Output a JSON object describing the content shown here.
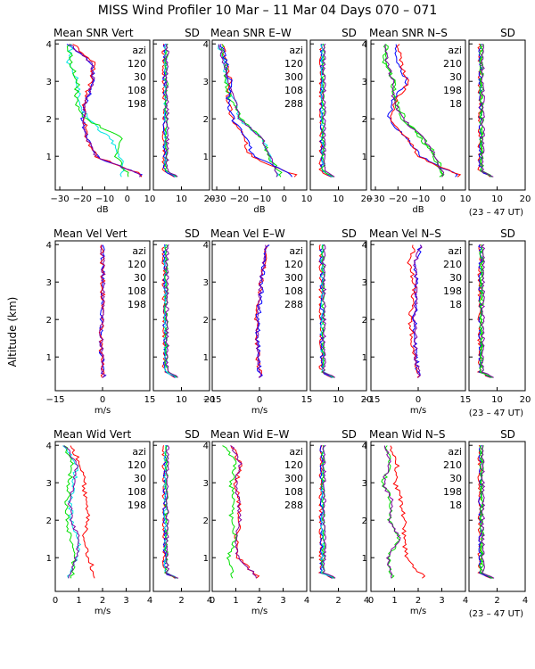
{
  "title": "MISS Wind Profiler  10 Mar – 11 Mar 04 Days 070 – 071",
  "ylabel": "Altitude (km)",
  "utc_note": "(23 – 47 UT)",
  "colors": {
    "120": "#ff0000",
    "30": "#0000ff",
    "300": "#0000ff",
    "108": "#00e5e5",
    "198": "#00e000",
    "288": "#00e000",
    "210": "#ff0000",
    "18": "#00e000",
    "purple": "#8000a0"
  },
  "chart_data": {
    "type": "line",
    "altitude_ticks": [
      1,
      2,
      3,
      4
    ],
    "altitude_range_km": [
      0.1,
      4.1
    ],
    "legend_heading": "azi",
    "legend_sets": {
      "vert": [
        "120",
        "30",
        "108",
        "198"
      ],
      "ew": [
        "120",
        "300",
        "108",
        "288"
      ],
      "ns": [
        "210",
        "30",
        "198",
        "18"
      ]
    },
    "rows": [
      {
        "key": "snr",
        "mean": {
          "xlim": [
            -32,
            10
          ],
          "ticks": [
            -30,
            -20,
            -10,
            0,
            10
          ],
          "tick_labels": [
            "−30",
            "−20",
            "−10",
            "0",
            "10"
          ],
          "xlabel": "dB"
        },
        "sd": {
          "xlim": [
            0,
            20
          ],
          "ticks": [
            10,
            20
          ],
          "tick_labels": [
            "10",
            "20"
          ]
        },
        "panels": [
          {
            "title": "Mean SNR Vert",
            "legend": "vert"
          },
          {
            "title": "Mean SNR E–W",
            "legend": "ew"
          },
          {
            "title": "Mean SNR N–S",
            "legend": "ns"
          }
        ],
        "sd_title": "SD"
      },
      {
        "key": "vel",
        "mean": {
          "xlim": [
            -15,
            15
          ],
          "ticks": [
            -15,
            0,
            15
          ],
          "tick_labels": [
            "−15",
            "0",
            "15"
          ],
          "xlabel": "m/s"
        },
        "sd": {
          "xlim": [
            0,
            20
          ],
          "ticks": [
            10,
            20
          ],
          "tick_labels": [
            "10",
            "20"
          ]
        },
        "panels": [
          {
            "title": "Mean Vel Vert",
            "legend": "vert"
          },
          {
            "title": "Mean Vel E–W",
            "legend": "ew"
          },
          {
            "title": "Mean Vel N–S",
            "legend": "ns"
          }
        ],
        "sd_title": "SD"
      },
      {
        "key": "wid",
        "mean": {
          "xlim": [
            0,
            4
          ],
          "ticks": [
            0,
            1,
            2,
            3,
            4
          ],
          "tick_labels": [
            "0",
            "1",
            "2",
            "3",
            "4"
          ],
          "xlabel": "m/s"
        },
        "sd": {
          "xlim": [
            0,
            4
          ],
          "ticks": [
            2,
            4
          ],
          "tick_labels": [
            "2",
            "4"
          ]
        },
        "panels": [
          {
            "title": "Mean Wid Vert",
            "legend": "vert"
          },
          {
            "title": "Mean Wid E–W",
            "legend": "ew"
          },
          {
            "title": "Mean Wid N–S",
            "legend": "ns"
          }
        ],
        "sd_title": "SD"
      }
    ],
    "profiles_altitudes_km": [
      0.5,
      1.0,
      1.5,
      2.0,
      2.5,
      3.0,
      3.5,
      4.0
    ],
    "profiles": {
      "snr_mean_vert": {
        "120": [
          7,
          -14,
          -18,
          -19,
          -19,
          -16,
          -15,
          -24
        ],
        "30": [
          6,
          -14,
          -18,
          -20,
          -18,
          -15,
          -16,
          -26
        ],
        "108": [
          -2,
          -3,
          -8,
          -18,
          -21,
          -22,
          -26,
          -25
        ],
        "198": [
          1,
          -5,
          -2,
          -19,
          -23,
          -22,
          -25,
          -26
        ]
      },
      "snr_mean_ew": {
        "120": [
          5,
          -15,
          -18,
          -23,
          -25,
          -24,
          -26,
          -27
        ],
        "300": [
          4,
          -14,
          -17,
          -23,
          -25,
          -24,
          -26,
          -28
        ],
        "108": [
          -3,
          -6,
          -10,
          -20,
          -22,
          -25,
          -27,
          -29
        ],
        "288": [
          -1,
          -7,
          -10,
          -19,
          -24,
          -26,
          -26,
          -28
        ]
      },
      "snr_mean_ns": {
        "210": [
          7,
          -11,
          -16,
          -24,
          -21,
          -15,
          -19,
          -20
        ],
        "30": [
          6,
          -10,
          -17,
          -24,
          -22,
          -16,
          -20,
          -21
        ],
        "198": [
          -1,
          -4,
          -10,
          -17,
          -21,
          -22,
          -26,
          -25
        ],
        "18": [
          0,
          -3,
          -9,
          -18,
          -22,
          -22,
          -25,
          -26
        ]
      },
      "vel_mean_vert": {
        "120": [
          0.2,
          -0.4,
          -0.6,
          -0.4,
          0,
          0.1,
          0,
          0.1
        ],
        "30": [
          0.3,
          -0.2,
          -0.5,
          -0.2,
          0.1,
          0.2,
          0.1,
          0
        ]
      },
      "vel_mean_ew": {
        "120": [
          0.1,
          -0.5,
          -0.7,
          -1.0,
          0,
          0.5,
          1.5,
          2.0
        ],
        "300": [
          0.2,
          -0.3,
          -0.6,
          -0.5,
          0.2,
          0.8,
          1.0,
          3.0
        ]
      },
      "vel_mean_ns": {
        "210": [
          0,
          -1.5,
          -2,
          -2.5,
          -2,
          -1.2,
          -3,
          -1
        ],
        "30": [
          0.2,
          -0.8,
          -0.8,
          -1.2,
          -0.8,
          -0.4,
          -1,
          0.8
        ]
      },
      "wid_mean_vert": {
        "120": [
          1.7,
          1.4,
          1.2,
          1.4,
          1.3,
          1.2,
          1.1,
          0.6
        ],
        "108": [
          0.6,
          0.9,
          1.0,
          0.7,
          0.6,
          0.8,
          0.9,
          0.4
        ],
        "198": [
          0.7,
          0.8,
          0.6,
          0.5,
          0.5,
          0.6,
          0.7,
          0.4
        ]
      },
      "wid_mean_ew": {
        "120": [
          1.9,
          1.1,
          1.0,
          1.2,
          1.1,
          1.0,
          1.2,
          0.8
        ],
        "288": [
          0.9,
          0.7,
          1.0,
          0.8,
          0.9,
          0.8,
          1.0,
          0.5
        ]
      },
      "wid_mean_ns": {
        "210": [
          2.2,
          1.5,
          1.4,
          1.4,
          1.3,
          1.0,
          1.1,
          0.8
        ],
        "198": [
          0.9,
          0.7,
          1.2,
          0.8,
          0.9,
          0.5,
          0.8,
          0.6
        ]
      }
    }
  }
}
